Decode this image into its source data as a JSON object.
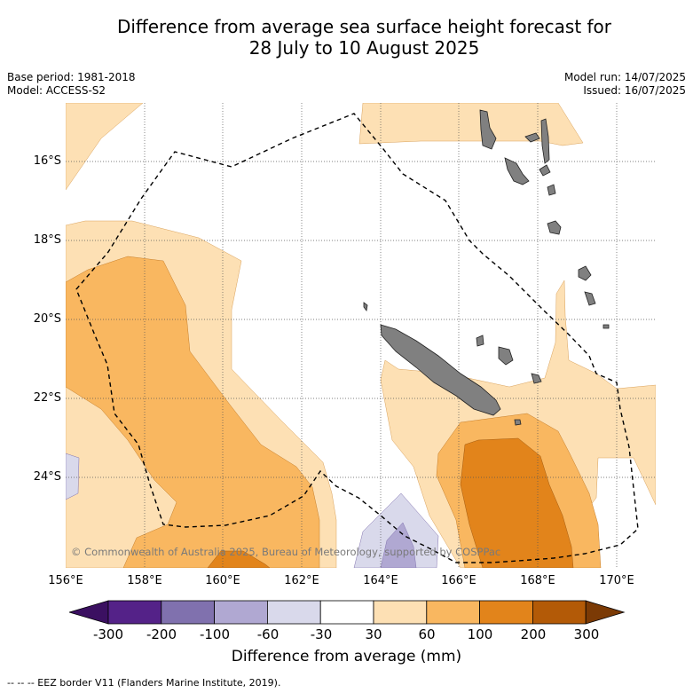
{
  "title_line1": "Difference from average sea surface height forecast for",
  "title_line2": "28 July to 10 August 2025",
  "meta": {
    "base_period": "Base period: 1981-2018",
    "model": "Model: ACCESS-S2",
    "model_run": "Model run: 14/07/2025",
    "issued": "Issued: 16/07/2025"
  },
  "map": {
    "region": "Coral Sea / New Caledonia",
    "lat_labels": [
      "16°S",
      "18°S",
      "20°S",
      "22°S",
      "24°S"
    ],
    "lon_labels": [
      "156°E",
      "158°E",
      "160°E",
      "162°E",
      "164°E",
      "166°E",
      "168°E",
      "170°E"
    ],
    "land_color": "#808080",
    "eez_border": "dashed black"
  },
  "copyright": "© Commonwealth of Australia 2025, Bureau of Meteorology, supported by COSPPac",
  "colorbar": {
    "ticks": [
      "-300",
      "-200",
      "-100",
      "-60",
      "-30",
      "30",
      "60",
      "100",
      "200",
      "300"
    ],
    "colors": [
      "#3b1061",
      "#542288",
      "#8071ae",
      "#b0a8d2",
      "#d9d9eb",
      "#ffffff",
      "#fde0b4",
      "#f9b760",
      "#e2841b",
      "#b35a07",
      "#7b3a05"
    ],
    "title": "Difference from average (mm)"
  },
  "footnote": "--  --  -- EEZ border V11 (Flanders Marine Institute, 2019)."
}
